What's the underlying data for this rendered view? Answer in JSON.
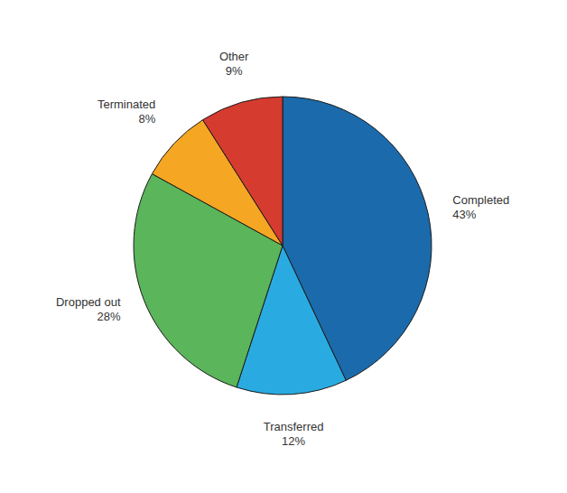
{
  "chart_data": {
    "type": "pie",
    "categories": [
      "Completed",
      "Transferred",
      "Dropped out",
      "Terminated",
      "Other"
    ],
    "values": [
      43,
      12,
      28,
      8,
      9
    ],
    "value_labels": [
      "43%",
      "12%",
      "28%",
      "8%",
      "9%"
    ],
    "colors": [
      "#1B6AAB",
      "#29ABE2",
      "#5BB55A",
      "#F5A623",
      "#D63B2F"
    ],
    "data_labels": true
  }
}
